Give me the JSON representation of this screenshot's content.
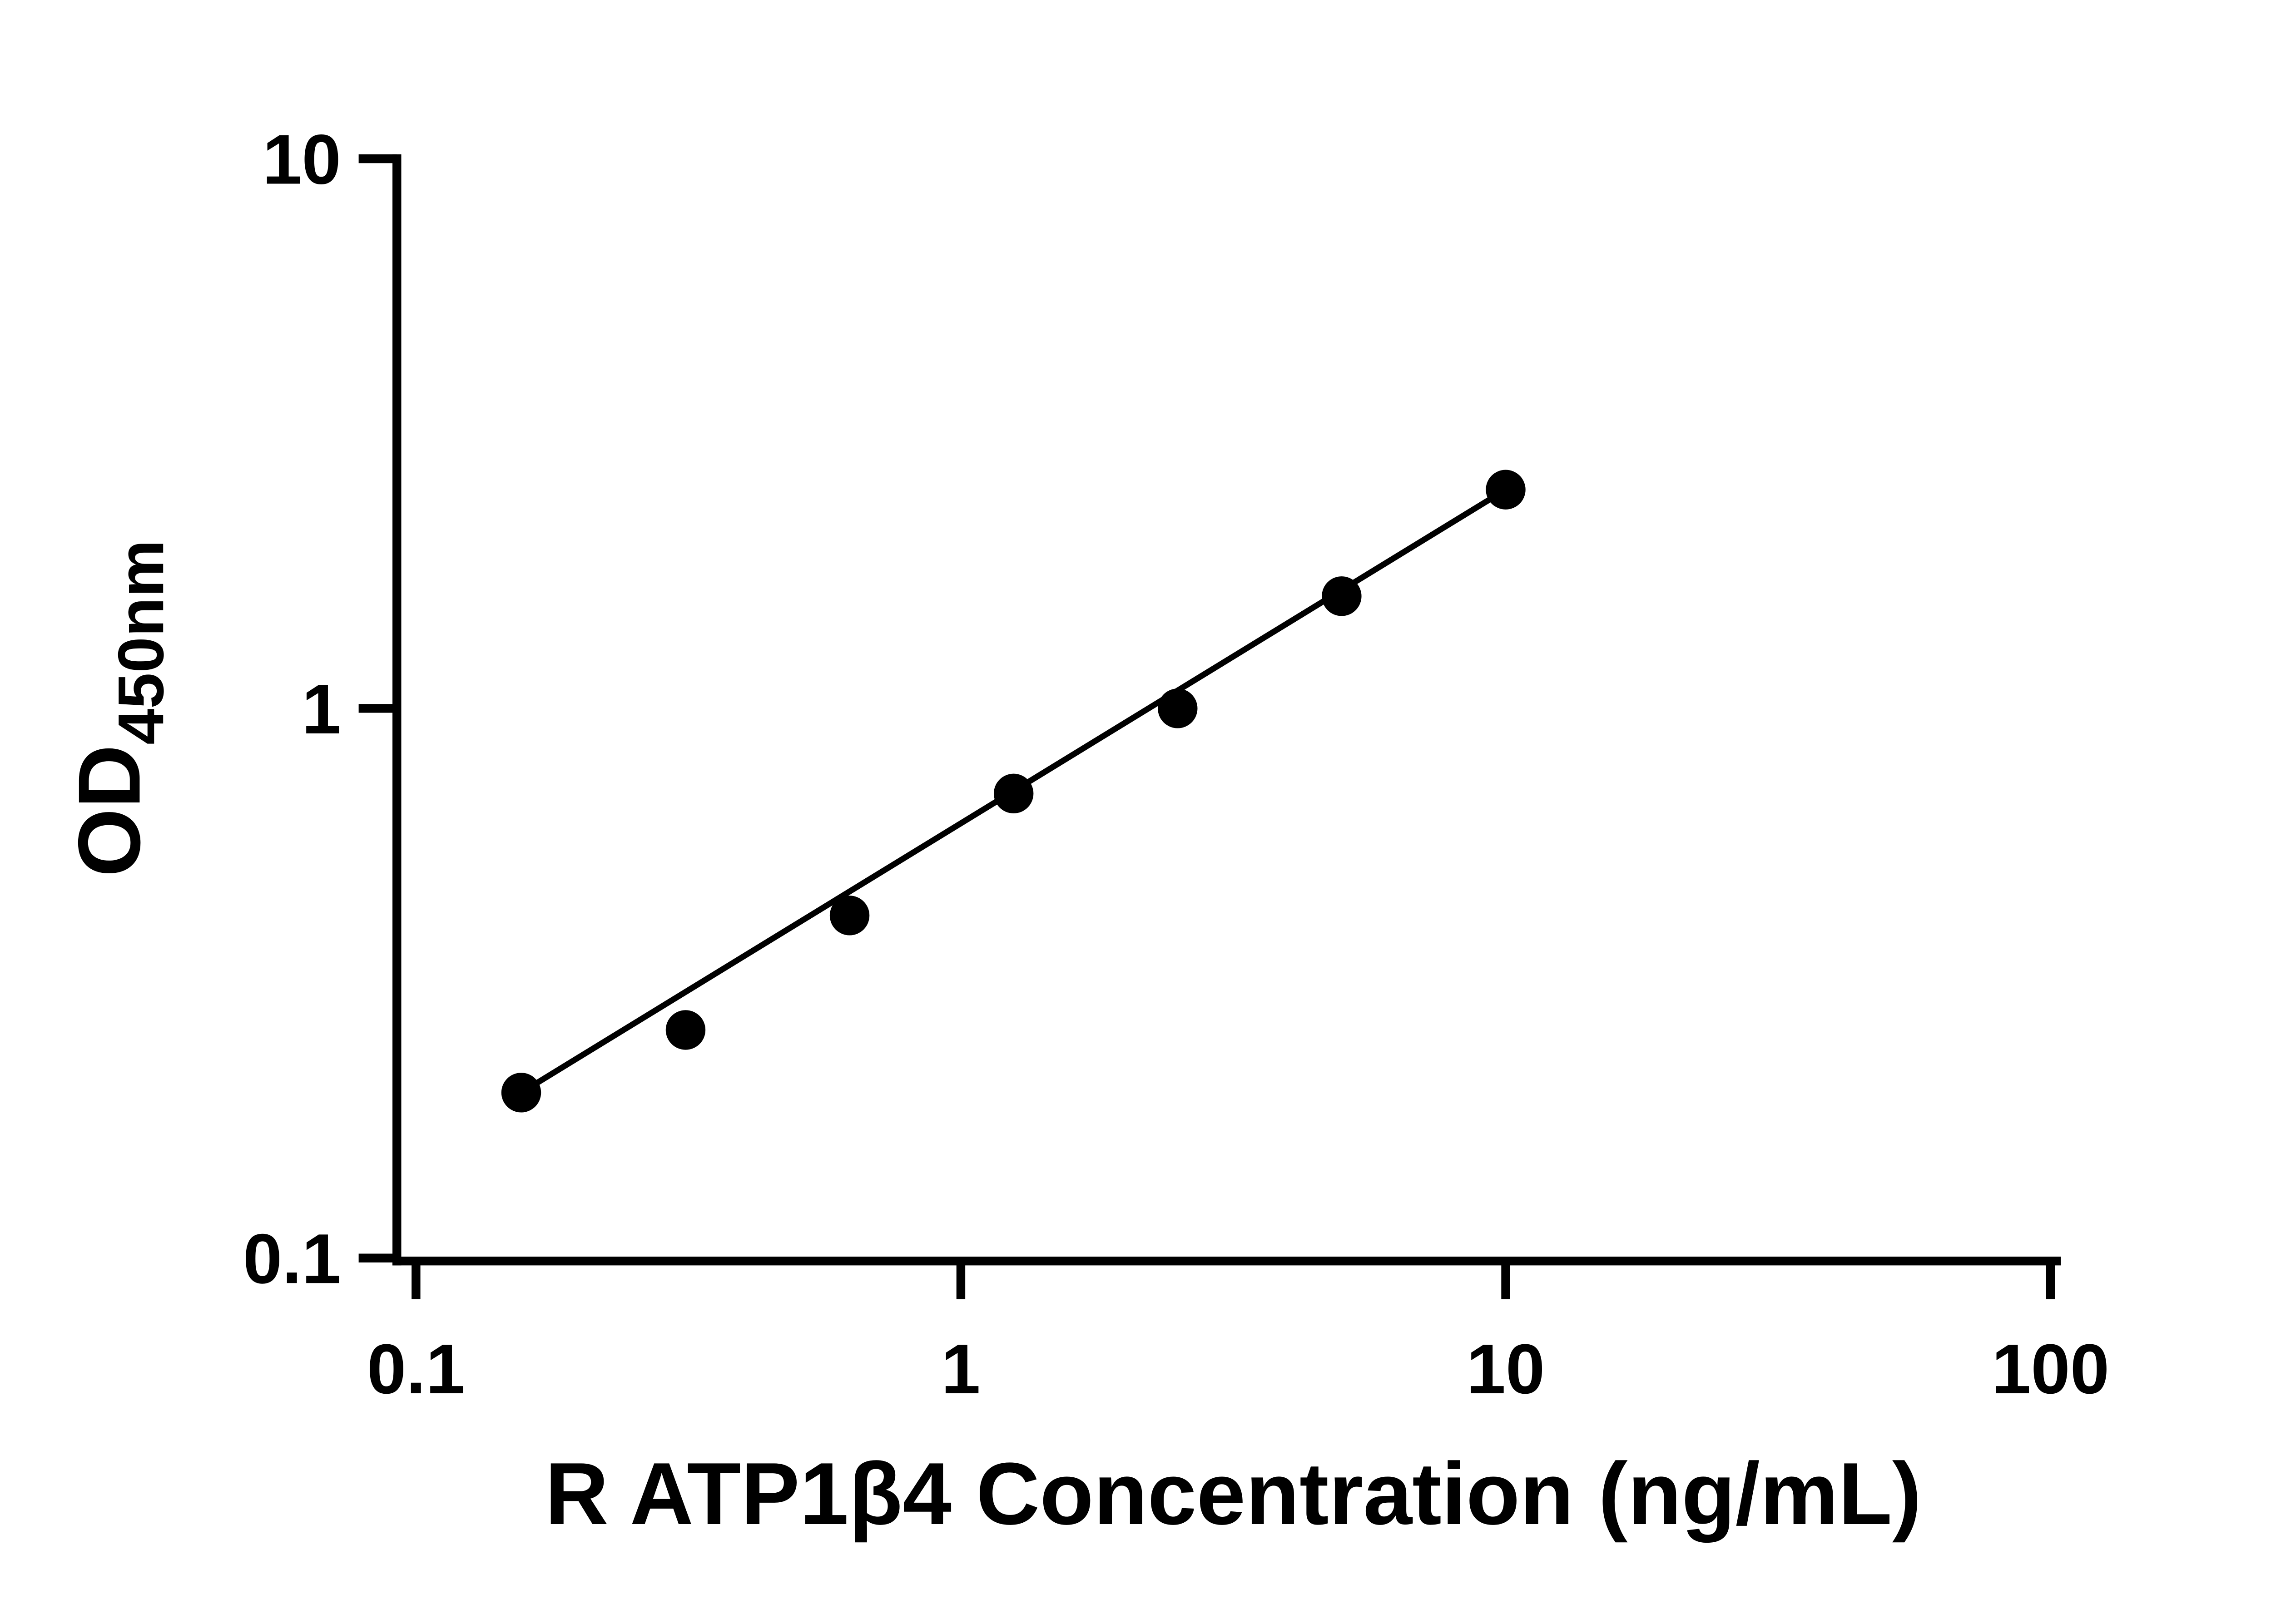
{
  "chart_data": {
    "type": "scatter",
    "x_scale": "log",
    "y_scale": "log",
    "x": [
      0.156,
      0.3125,
      0.625,
      1.25,
      2.5,
      5,
      10
    ],
    "y": [
      0.2,
      0.26,
      0.42,
      0.7,
      1.0,
      1.6,
      2.5
    ],
    "trendline": "straight line through first and last points (log-log linear fit)",
    "xlabel": "R ATP1β4 Concentration (ng/mL)",
    "ylabel_main": "OD",
    "ylabel_sub": "450nm",
    "xlim": [
      0.1,
      100
    ],
    "ylim": [
      0.1,
      10
    ],
    "x_ticks": [
      {
        "value": 0.1,
        "label": "0.1"
      },
      {
        "value": 1,
        "label": "1"
      },
      {
        "value": 10,
        "label": "10"
      },
      {
        "value": 100,
        "label": "100"
      }
    ],
    "y_ticks": [
      {
        "value": 0.1,
        "label": "0.1"
      },
      {
        "value": 1,
        "label": "1"
      },
      {
        "value": 10,
        "label": "10"
      }
    ],
    "grid": false,
    "legend": "none",
    "marker_color": "#000000",
    "line_color": "#000000",
    "background_color": "#ffffff"
  }
}
